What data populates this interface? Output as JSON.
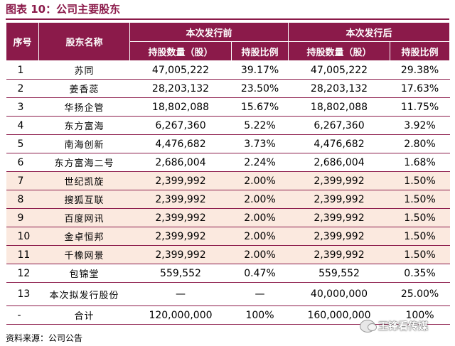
{
  "title": "图表 10：公司主要股东",
  "header": {
    "seq": "序号",
    "name": "股东名称",
    "before": "本次发行前",
    "after": "本次发行后",
    "shares": "持股数量（股）",
    "ratio": "持股比例"
  },
  "rows": [
    {
      "seq": "1",
      "name": "苏同",
      "shares_before": "47,005,222",
      "ratio_before": "39.17%",
      "shares_after": "47,005,222",
      "ratio_after": "29.38%"
    },
    {
      "seq": "2",
      "name": "姜香蕊",
      "shares_before": "28,203,132",
      "ratio_before": "23.50%",
      "shares_after": "28,203,132",
      "ratio_after": "17.63%"
    },
    {
      "seq": "3",
      "name": "华扬企管",
      "shares_before": "18,802,088",
      "ratio_before": "15.67%",
      "shares_after": "18,802,088",
      "ratio_after": "11.75%"
    },
    {
      "seq": "4",
      "name": "东方富海",
      "shares_before": "6,267,360",
      "ratio_before": "5.22%",
      "shares_after": "6,267,360",
      "ratio_after": "3.92%"
    },
    {
      "seq": "5",
      "name": "南海创新",
      "shares_before": "4,476,682",
      "ratio_before": "3.73%",
      "shares_after": "4,476,682",
      "ratio_after": "2.80%"
    },
    {
      "seq": "6",
      "name": "东方富海二号",
      "shares_before": "2,686,004",
      "ratio_before": "2.24%",
      "shares_after": "2,686,004",
      "ratio_after": "1.68%"
    },
    {
      "seq": "7",
      "name": "世纪凯旋",
      "shares_before": "2,399,992",
      "ratio_before": "2.00%",
      "shares_after": "2,399,992",
      "ratio_after": "1.50%"
    },
    {
      "seq": "8",
      "name": "搜狐互联",
      "shares_before": "2,399,992",
      "ratio_before": "2.00%",
      "shares_after": "2,399,992",
      "ratio_after": "1.50%"
    },
    {
      "seq": "9",
      "name": "百度网讯",
      "shares_before": "2,399,992",
      "ratio_before": "2.00%",
      "shares_after": "2,399,992",
      "ratio_after": "1.50%"
    },
    {
      "seq": "10",
      "name": "金卓恒邦",
      "shares_before": "2,399,992",
      "ratio_before": "2.00%",
      "shares_after": "2,399,992",
      "ratio_after": "1.50%"
    },
    {
      "seq": "11",
      "name": "千橡网景",
      "shares_before": "2,399,992",
      "ratio_before": "2.00%",
      "shares_after": "2,399,992",
      "ratio_after": "1.50%"
    },
    {
      "seq": "12",
      "name": "包锦堂",
      "shares_before": "559,552",
      "ratio_before": "0.47%",
      "shares_after": "559,552",
      "ratio_after": "0.35%"
    },
    {
      "seq": "13",
      "name": "本次拟发行股份",
      "shares_before": "—",
      "ratio_before": "—",
      "shares_after": "40,000,000",
      "ratio_after": "25.00%"
    },
    {
      "seq": "-",
      "name": "合计",
      "shares_before": "120,000,000",
      "ratio_before": "100%",
      "shares_after": "160,000,000",
      "ratio_after": "100%"
    }
  ],
  "source": "资料来源：公司公告",
  "watermark": "王锋看传媒"
}
